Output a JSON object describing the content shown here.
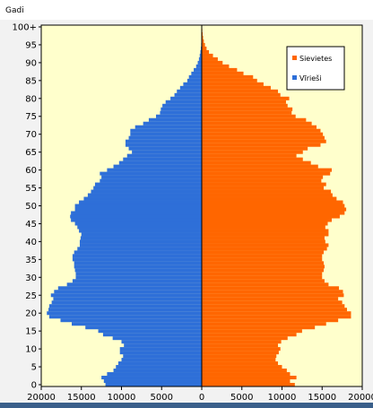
{
  "colors": {
    "plot_bg": "#ffffcc",
    "men": "#2e6fd8",
    "women": "#ff6600",
    "bottom_bar": "#3a5f8a",
    "page_bg": "#f2f2f2"
  },
  "chart_data": {
    "type": "bar",
    "orientation": "horizontal",
    "layout": "population-pyramid",
    "ylabel": "Gadi",
    "y_tick_labels": [
      "0",
      "5",
      "10",
      "15",
      "20",
      "25",
      "30",
      "35",
      "40",
      "45",
      "50",
      "55",
      "60",
      "65",
      "70",
      "75",
      "80",
      "85",
      "90",
      "95",
      "100+"
    ],
    "x_tick_labels": [
      "20000",
      "15000",
      "10000",
      "5000",
      "0",
      "5000",
      "10000",
      "15000",
      "20000"
    ],
    "xlim": [
      -20000,
      20000
    ],
    "ylim": [
      0,
      101
    ],
    "legend": {
      "placement": "top-right",
      "entries": [
        "Sievietes",
        "Vīrieši"
      ]
    },
    "series": [
      {
        "name": "Sievietes",
        "side": "right",
        "values": [
          11600,
          11000,
          11800,
          11000,
          10600,
          10000,
          9500,
          9200,
          9300,
          9600,
          9800,
          9500,
          9900,
          10700,
          11800,
          12500,
          14100,
          15500,
          17000,
          18600,
          18600,
          18100,
          17800,
          17500,
          17000,
          17700,
          17600,
          17100,
          15800,
          15300,
          15000,
          15000,
          15200,
          15300,
          15200,
          15000,
          15000,
          15200,
          15600,
          15800,
          15400,
          15300,
          15800,
          15800,
          15400,
          15700,
          16200,
          17200,
          17800,
          18000,
          17800,
          17600,
          16800,
          16300,
          16100,
          15200,
          15500,
          14900,
          15100,
          16000,
          16200,
          14500,
          13600,
          12600,
          11800,
          12600,
          13200,
          14800,
          15500,
          15300,
          15100,
          14800,
          14300,
          13700,
          13000,
          11700,
          11200,
          11300,
          10700,
          10500,
          10900,
          9800,
          9500,
          8600,
          7700,
          6900,
          6400,
          5200,
          4400,
          3400,
          2600,
          2000,
          1400,
          900,
          600,
          400,
          260,
          170,
          110,
          70,
          50
        ]
      },
      {
        "name": "Vīrieši",
        "side": "left",
        "values": [
          12000,
          12200,
          12500,
          11800,
          11000,
          10700,
          10400,
          10000,
          9800,
          10200,
          10200,
          9700,
          10000,
          11100,
          12300,
          12900,
          14500,
          16200,
          17600,
          19000,
          19300,
          19100,
          19000,
          18700,
          18500,
          18800,
          18400,
          17900,
          16800,
          16100,
          15700,
          15700,
          15800,
          15900,
          15900,
          16100,
          16100,
          15900,
          15500,
          15200,
          15200,
          15100,
          15000,
          15300,
          15500,
          15800,
          16300,
          16400,
          16300,
          15800,
          15800,
          15300,
          14700,
          14200,
          13800,
          13500,
          13300,
          12700,
          12500,
          12700,
          11800,
          11000,
          10300,
          9800,
          9300,
          8700,
          9100,
          9500,
          9500,
          9100,
          8900,
          8900,
          8300,
          7300,
          6600,
          5700,
          5200,
          5100,
          4900,
          4500,
          3900,
          3400,
          3100,
          2700,
          2300,
          1800,
          1600,
          1300,
          1000,
          700,
          500,
          350,
          250,
          170,
          110,
          70,
          50,
          35,
          25,
          20,
          15
        ]
      }
    ]
  }
}
